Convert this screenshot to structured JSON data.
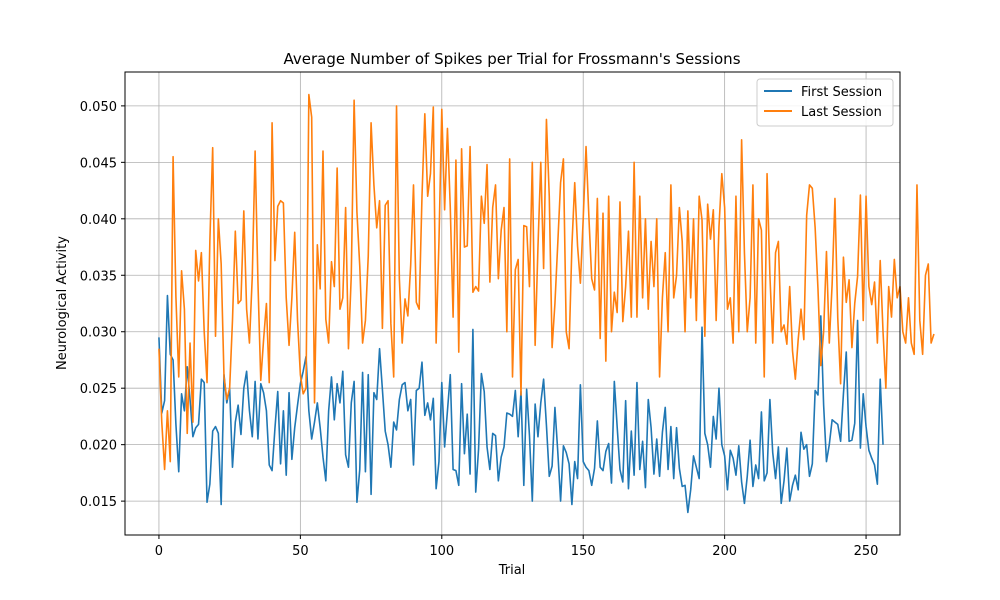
{
  "chart_data": {
    "type": "line",
    "title": "Average Number of Spikes per Trial for Frossmann's Sessions",
    "xlabel": "Trial",
    "ylabel": "Neurological Activity",
    "xlim": [
      -12,
      262
    ],
    "ylim": [
      0.012,
      0.053
    ],
    "xticks": [
      0,
      50,
      100,
      150,
      200,
      250
    ],
    "yticks": [
      0.015,
      0.02,
      0.025,
      0.03,
      0.035,
      0.04,
      0.045,
      0.05
    ],
    "ytick_labels": [
      "0.015",
      "0.020",
      "0.025",
      "0.030",
      "0.035",
      "0.040",
      "0.045",
      "0.050"
    ],
    "xtick_labels": [
      "0",
      "50",
      "100",
      "150",
      "200",
      "250"
    ],
    "grid": true,
    "legend_position": "top-right",
    "series": [
      {
        "name": "First Session",
        "color": "#1f77b4",
        "x_start": 0,
        "values": [
          0.0295,
          0.0228,
          0.0239,
          0.0332,
          0.028,
          0.0275,
          0.0218,
          0.0176,
          0.0245,
          0.023,
          0.0269,
          0.024,
          0.0207,
          0.0215,
          0.0218,
          0.0258,
          0.0255,
          0.0149,
          0.0165,
          0.0212,
          0.0216,
          0.021,
          0.0147,
          0.0262,
          0.0237,
          0.025,
          0.018,
          0.022,
          0.0235,
          0.0209,
          0.025,
          0.0265,
          0.023,
          0.0207,
          0.0256,
          0.0205,
          0.0254,
          0.0246,
          0.023,
          0.0182,
          0.0177,
          0.0214,
          0.0247,
          0.0183,
          0.023,
          0.0173,
          0.0246,
          0.0187,
          0.0215,
          0.0235,
          0.0254,
          0.0265,
          0.0278,
          0.023,
          0.0205,
          0.022,
          0.0237,
          0.0215,
          0.0189,
          0.0168,
          0.023,
          0.026,
          0.0222,
          0.0254,
          0.0237,
          0.0265,
          0.0191,
          0.018,
          0.0237,
          0.0256,
          0.0149,
          0.0178,
          0.0264,
          0.0176,
          0.0262,
          0.0156,
          0.0246,
          0.024,
          0.0285,
          0.0249,
          0.0212,
          0.02,
          0.018,
          0.022,
          0.0213,
          0.024,
          0.0253,
          0.0255,
          0.023,
          0.024,
          0.0182,
          0.0248,
          0.025,
          0.0273,
          0.0226,
          0.0237,
          0.0222,
          0.0241,
          0.0161,
          0.0185,
          0.0255,
          0.0198,
          0.023,
          0.0262,
          0.0178,
          0.0177,
          0.0164,
          0.0254,
          0.0192,
          0.0227,
          0.0174,
          0.0302,
          0.0158,
          0.0196,
          0.0263,
          0.0247,
          0.0198,
          0.0178,
          0.021,
          0.0208,
          0.0168,
          0.0189,
          0.0198,
          0.0228,
          0.0227,
          0.0225,
          0.0248,
          0.0207,
          0.0247,
          0.0164,
          0.0249,
          0.0208,
          0.015,
          0.0236,
          0.0207,
          0.0237,
          0.0258,
          0.0217,
          0.0172,
          0.0181,
          0.0233,
          0.0194,
          0.015,
          0.0199,
          0.0193,
          0.0183,
          0.0147,
          0.0185,
          0.017,
          0.0253,
          0.0185,
          0.018,
          0.0177,
          0.0164,
          0.0179,
          0.0221,
          0.018,
          0.0177,
          0.0194,
          0.0201,
          0.0166,
          0.0256,
          0.0216,
          0.0178,
          0.0167,
          0.0239,
          0.0161,
          0.0212,
          0.0173,
          0.0255,
          0.0178,
          0.0203,
          0.0162,
          0.024,
          0.0215,
          0.0174,
          0.0205,
          0.0172,
          0.0211,
          0.0233,
          0.0178,
          0.0216,
          0.017,
          0.0215,
          0.0179,
          0.0163,
          0.0164,
          0.014,
          0.016,
          0.019,
          0.018,
          0.017,
          0.0304,
          0.021,
          0.02,
          0.018,
          0.0225,
          0.0205,
          0.025,
          0.02,
          0.019,
          0.016,
          0.0195,
          0.0188,
          0.0173,
          0.0199,
          0.0167,
          0.0148,
          0.0172,
          0.0204,
          0.0163,
          0.0182,
          0.017,
          0.0229,
          0.0168,
          0.0175,
          0.024,
          0.0193,
          0.017,
          0.0198,
          0.0148,
          0.0168,
          0.0197,
          0.015,
          0.0164,
          0.0173,
          0.016,
          0.0211,
          0.0196,
          0.02,
          0.0172,
          0.0183,
          0.0248,
          0.0244,
          0.0314,
          0.0235,
          0.0185,
          0.02,
          0.0222,
          0.022,
          0.0218,
          0.0203,
          0.0245,
          0.0282,
          0.0203,
          0.0204,
          0.0219,
          0.031,
          0.0197,
          0.0245,
          0.0216,
          0.0195,
          0.0188,
          0.0182,
          0.0165,
          0.0258,
          0.02
        ]
      },
      {
        "name": "Last Session",
        "color": "#ff7f0e",
        "x_start": 0,
        "values": [
          0.0285,
          0.022,
          0.0178,
          0.023,
          0.0185,
          0.0455,
          0.0331,
          0.026,
          0.0354,
          0.032,
          0.021,
          0.029,
          0.022,
          0.0372,
          0.0345,
          0.037,
          0.03,
          0.0255,
          0.038,
          0.0463,
          0.0296,
          0.04,
          0.036,
          0.026,
          0.024,
          0.025,
          0.031,
          0.0389,
          0.0325,
          0.0328,
          0.0407,
          0.032,
          0.029,
          0.0349,
          0.046,
          0.0344,
          0.0257,
          0.0293,
          0.0325,
          0.0255,
          0.0485,
          0.0363,
          0.0411,
          0.0416,
          0.0414,
          0.033,
          0.0288,
          0.033,
          0.0388,
          0.031,
          0.0262,
          0.0245,
          0.025,
          0.051,
          0.049,
          0.0237,
          0.0377,
          0.0338,
          0.046,
          0.0311,
          0.029,
          0.0362,
          0.034,
          0.0445,
          0.032,
          0.033,
          0.041,
          0.0285,
          0.035,
          0.0505,
          0.0406,
          0.0358,
          0.029,
          0.031,
          0.0367,
          0.0485,
          0.043,
          0.0392,
          0.0416,
          0.0303,
          0.0412,
          0.0416,
          0.0307,
          0.026,
          0.05,
          0.0347,
          0.029,
          0.0329,
          0.0314,
          0.0359,
          0.043,
          0.0326,
          0.032,
          0.042,
          0.0493,
          0.042,
          0.044,
          0.0499,
          0.029,
          0.038,
          0.0497,
          0.0408,
          0.048,
          0.041,
          0.0313,
          0.0452,
          0.0282,
          0.0462,
          0.0375,
          0.0376,
          0.0464,
          0.0335,
          0.034,
          0.0336,
          0.042,
          0.0396,
          0.0448,
          0.0344,
          0.041,
          0.043,
          0.0347,
          0.039,
          0.041,
          0.03,
          0.0453,
          0.026,
          0.0355,
          0.0364,
          0.0244,
          0.0394,
          0.0393,
          0.034,
          0.045,
          0.0288,
          0.0375,
          0.045,
          0.0356,
          0.0488,
          0.042,
          0.0286,
          0.0325,
          0.0378,
          0.0432,
          0.0453,
          0.03,
          0.0285,
          0.0376,
          0.0432,
          0.0376,
          0.0343,
          0.04,
          0.0464,
          0.0402,
          0.0347,
          0.0337,
          0.0418,
          0.0294,
          0.0405,
          0.0274,
          0.042,
          0.03,
          0.0335,
          0.0317,
          0.0415,
          0.0309,
          0.034,
          0.0389,
          0.0313,
          0.045,
          0.0313,
          0.042,
          0.033,
          0.04,
          0.032,
          0.038,
          0.034,
          0.04,
          0.026,
          0.033,
          0.037,
          0.03,
          0.043,
          0.033,
          0.035,
          0.041,
          0.038,
          0.03,
          0.0407,
          0.033,
          0.04,
          0.031,
          0.042,
          0.0399,
          0.0296,
          0.0413,
          0.0382,
          0.0408,
          0.031,
          0.0393,
          0.044,
          0.041,
          0.032,
          0.033,
          0.029,
          0.042,
          0.03,
          0.047,
          0.037,
          0.03,
          0.033,
          0.043,
          0.029,
          0.04,
          0.039,
          0.026,
          0.044,
          0.035,
          0.029,
          0.037,
          0.038,
          0.03,
          0.0306,
          0.0289,
          0.034,
          0.0283,
          0.0258,
          0.0293,
          0.032,
          0.0293,
          0.0403,
          0.043,
          0.0427,
          0.0392,
          0.0338,
          0.027,
          0.03,
          0.0371,
          0.029,
          0.0342,
          0.0418,
          0.0312,
          0.0254,
          0.0366,
          0.0326,
          0.0346,
          0.0286,
          0.0325,
          0.0349,
          0.0421,
          0.031,
          0.042,
          0.034,
          0.0324,
          0.0344,
          0.029,
          0.0363,
          0.03,
          0.025,
          0.034,
          0.0313,
          0.0364,
          0.033,
          0.034,
          0.03,
          0.029,
          0.033,
          0.029,
          0.028,
          0.043,
          0.031,
          0.028,
          0.035,
          0.036,
          0.029,
          0.0298
        ]
      }
    ]
  }
}
